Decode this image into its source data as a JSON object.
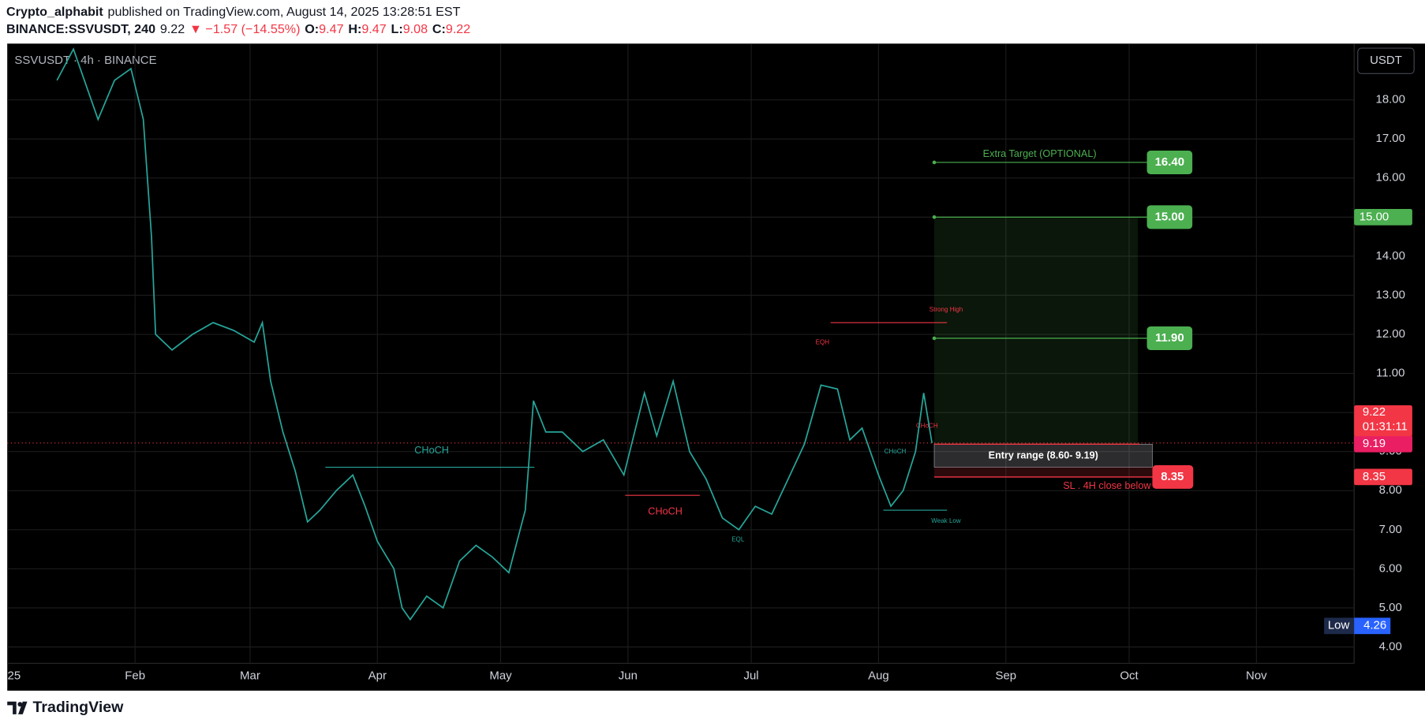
{
  "header": {
    "author": "Crypto_alphabit",
    "published": "published on TradingView.com, August 14, 2025 13:28:51 EST",
    "symbol": "BINANCE:SSVUSDT, 240",
    "last": "9.22",
    "change": "▼ −1.57 (−14.55%)",
    "ohlc": [
      {
        "key": "O:",
        "value": "9.47"
      },
      {
        "key": "H:",
        "value": "9.47"
      },
      {
        "key": "L:",
        "value": "9.08"
      },
      {
        "key": "C:",
        "value": "9.22"
      }
    ]
  },
  "footer": {
    "brand": "TradingView"
  },
  "chart_data": {
    "type": "line",
    "legend": "SSVUSDT · 4h · BINANCE",
    "currency": "USDT",
    "x": [
      12,
      16,
      22,
      26,
      30,
      33,
      35,
      36,
      40,
      45,
      50,
      55,
      60,
      62,
      64,
      67,
      70,
      73,
      76,
      80,
      84,
      87,
      90,
      94,
      96,
      98,
      102,
      106,
      110,
      114,
      118,
      122,
      126,
      128,
      131,
      135,
      140,
      145,
      150,
      155,
      158,
      162,
      166,
      170,
      174,
      178,
      182,
      186,
      190,
      194,
      198,
      202,
      205,
      208,
      212,
      215,
      218,
      221,
      223,
      225
    ],
    "series": [
      {
        "color": "#26a69a",
        "values": [
          18.5,
          19.3,
          17.5,
          18.5,
          18.8,
          17.5,
          14.5,
          12.0,
          11.6,
          12.0,
          12.3,
          12.1,
          11.8,
          12.3,
          10.8,
          9.5,
          8.5,
          7.2,
          7.5,
          8.0,
          8.4,
          7.6,
          6.7,
          6.0,
          5.0,
          4.7,
          5.3,
          5.0,
          6.2,
          6.6,
          6.3,
          5.9,
          7.5,
          10.3,
          9.5,
          9.5,
          9.0,
          9.3,
          8.4,
          10.5,
          9.4,
          10.8,
          9.0,
          8.3,
          7.3,
          7.0,
          7.6,
          7.4,
          8.3,
          9.2,
          10.7,
          10.6,
          9.3,
          9.6,
          8.4,
          7.6,
          8.0,
          9.0,
          10.5,
          9.22
        ]
      }
    ],
    "xlim": [
      0,
      328
    ],
    "xticks": [
      {
        "value": 0,
        "label": "25"
      },
      {
        "value": 31,
        "label": "Feb"
      },
      {
        "value": 59,
        "label": "Mar"
      },
      {
        "value": 90,
        "label": "Apr"
      },
      {
        "value": 120,
        "label": "May"
      },
      {
        "value": 151,
        "label": "Jun"
      },
      {
        "value": 181,
        "label": "Jul"
      },
      {
        "value": 212,
        "label": "Aug"
      },
      {
        "value": 243,
        "label": "Sep"
      },
      {
        "value": 273,
        "label": "Oct"
      },
      {
        "value": 304,
        "label": "Nov"
      }
    ],
    "ylim": [
      3.58,
      19.44
    ],
    "yticks": [
      {
        "value": 4,
        "label": "4.00"
      },
      {
        "value": 5,
        "label": "5.00"
      },
      {
        "value": 6,
        "label": "6.00"
      },
      {
        "value": 7,
        "label": "7.00"
      },
      {
        "value": 8,
        "label": "8.00"
      },
      {
        "value": 9,
        "label": "9.00"
      },
      {
        "value": 10,
        "label": "10.00"
      },
      {
        "value": 11,
        "label": "11.00"
      },
      {
        "value": 12,
        "label": "12.00"
      },
      {
        "value": 13,
        "label": "13.00"
      },
      {
        "value": 14,
        "label": "14.00"
      },
      {
        "value": 15,
        "label": "15.00"
      },
      {
        "value": 16,
        "label": "16.00"
      },
      {
        "value": 17,
        "label": "17.00"
      },
      {
        "value": 18,
        "label": "18.00"
      }
    ],
    "grid": true,
    "targets": [
      {
        "value": 16.4,
        "label": "16.40",
        "note": "Extra Target (OPTIONAL)"
      },
      {
        "value": 15,
        "label": "15.00"
      },
      {
        "value": 11.9,
        "label": "11.90"
      }
    ],
    "entry": {
      "text": "Entry range   (8.60- 9.19)",
      "low": 8.6,
      "high": 9.19
    },
    "stop": {
      "value": 8.35,
      "label": "8.35",
      "note": "SL . 4H close below"
    },
    "last_price": 9.22,
    "countdown": "01:31:11",
    "axis_tags": [
      {
        "value": 15,
        "label": "15.00",
        "color": "#4caf50"
      },
      {
        "value": 9.22,
        "label": "9.22",
        "color": "#f23645"
      },
      {
        "value": 9.19,
        "label": "9.19",
        "color": "#e91e63"
      },
      {
        "value": 8.35,
        "label": "8.35",
        "color": "#f23645"
      }
    ],
    "low": {
      "text": "Low",
      "value": 4.26,
      "label": "4.26"
    },
    "structures": [
      {
        "text": "CHoCH",
        "value": 8.6,
        "color": "#26a69a"
      },
      {
        "text": "CHoCH",
        "value": 7.88,
        "color": "#f23645"
      },
      {
        "text": "Strong High",
        "value": 12.3,
        "color": "#f23645"
      },
      {
        "text": "Weak Low",
        "value": 7.5,
        "color": "#26a69a"
      }
    ],
    "annotations": [
      {
        "text": "EQH",
        "color": "#f23645"
      },
      {
        "text": "CHoCH",
        "color": "#f23645"
      },
      {
        "text": "CHoCH",
        "color": "#26a69a"
      },
      {
        "text": "EQL",
        "color": "#26a69a"
      }
    ]
  }
}
